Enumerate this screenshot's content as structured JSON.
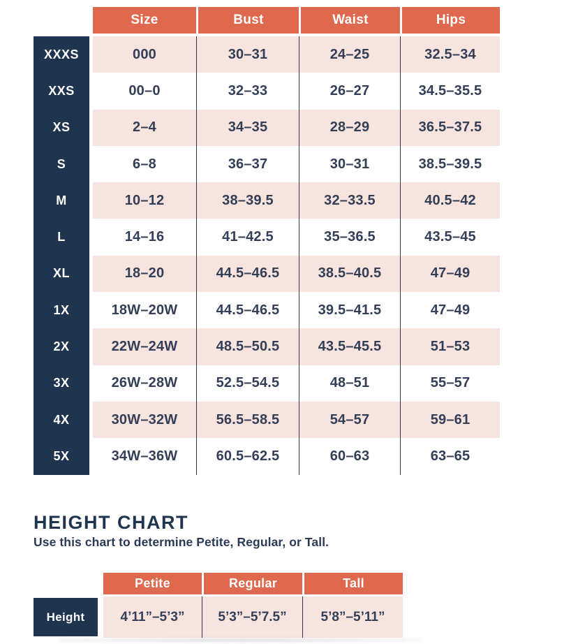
{
  "colors": {
    "header_bg": "#DF694E",
    "label_bg": "#1E344F",
    "alt_row_bg": "#F8E4DE",
    "text": "#333E57",
    "divider_line": "#2C3850"
  },
  "size_chart": {
    "header": [
      "Size",
      "Bust",
      "Waist",
      "Hips"
    ],
    "rows": [
      {
        "label": "XXXS",
        "cells": [
          "000",
          "30–31",
          "24–25",
          "32.5–34"
        ]
      },
      {
        "label": "XXS",
        "cells": [
          "00–0",
          "32–33",
          "26–27",
          "34.5–35.5"
        ]
      },
      {
        "label": "XS",
        "cells": [
          "2–4",
          "34–35",
          "28–29",
          "36.5–37.5"
        ]
      },
      {
        "label": "S",
        "cells": [
          "6–8",
          "36–37",
          "30–31",
          "38.5–39.5"
        ]
      },
      {
        "label": "M",
        "cells": [
          "10–12",
          "38–39.5",
          "32–33.5",
          "40.5–42"
        ]
      },
      {
        "label": "L",
        "cells": [
          "14–16",
          "41–42.5",
          "35–36.5",
          "43.5–45"
        ]
      },
      {
        "label": "XL",
        "cells": [
          "18–20",
          "44.5–46.5",
          "38.5–40.5",
          "47–49"
        ]
      },
      {
        "label": "1X",
        "cells": [
          "18W–20W",
          "44.5–46.5",
          "39.5–41.5",
          "47–49"
        ]
      },
      {
        "label": "2X",
        "cells": [
          "22W–24W",
          "48.5–50.5",
          "43.5–45.5",
          "51–53"
        ]
      },
      {
        "label": "3X",
        "cells": [
          "26W–28W",
          "52.5–54.5",
          "48–51",
          "55–57"
        ]
      },
      {
        "label": "4X",
        "cells": [
          "30W–32W",
          "56.5–58.5",
          "54–57",
          "59–61"
        ]
      },
      {
        "label": "5X",
        "cells": [
          "34W–36W",
          "60.5–62.5",
          "60–63",
          "63–65"
        ]
      }
    ]
  },
  "height_chart": {
    "title": "HEIGHT CHART",
    "subtitle": "Use this chart to determine Petite, Regular, or Tall.",
    "columns": [
      "Petite",
      "Regular",
      "Tall"
    ],
    "row_label": "Height",
    "values": [
      "4’11”–5’3”",
      "5’3”–5’7.5”",
      "5’8”–5’11”"
    ]
  }
}
